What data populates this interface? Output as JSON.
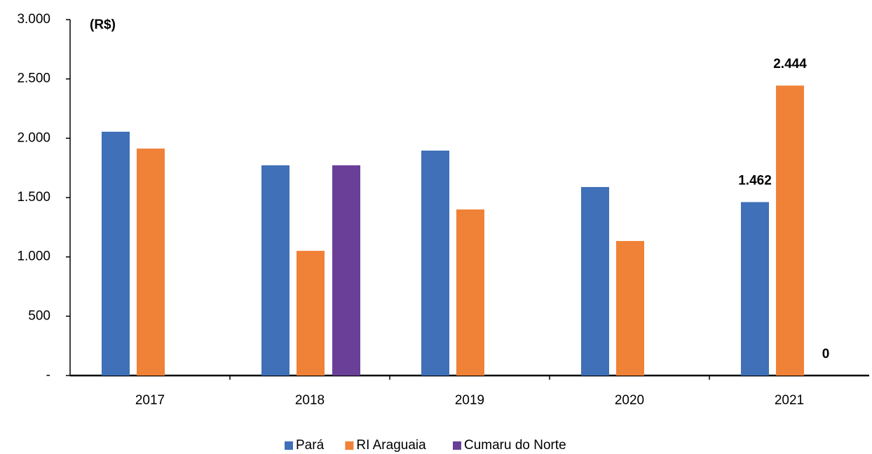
{
  "chart_data": {
    "type": "bar",
    "y_label": "(R$)",
    "categories": [
      "2017",
      "2018",
      "2019",
      "2020",
      "2021"
    ],
    "series": [
      {
        "name": "Pará",
        "color": "#3f70b8",
        "values": [
          2055,
          1772,
          1896,
          1589,
          1462
        ],
        "value_labels": [
          null,
          null,
          null,
          null,
          "1.462"
        ]
      },
      {
        "name": "RI Araguaia",
        "color": "#f08237",
        "values": [
          1913,
          1051,
          1400,
          1134,
          2444
        ],
        "value_labels": [
          null,
          null,
          null,
          null,
          "2.444"
        ]
      },
      {
        "name": "Cumaru do Norte",
        "color": "#6a3f98",
        "values": [
          null,
          1772,
          null,
          null,
          0
        ],
        "value_labels": [
          null,
          null,
          null,
          null,
          "0"
        ]
      }
    ],
    "ylim": [
      0,
      3000
    ],
    "yticks": [
      {
        "value": 0,
        "label": "-"
      },
      500,
      {
        "value": 1000,
        "label": "1.000"
      },
      {
        "value": 1500,
        "label": "1.500"
      },
      {
        "value": 2000,
        "label": "2.000"
      },
      {
        "value": 2500,
        "label": "2.500"
      },
      {
        "value": 3000,
        "label": "3.000"
      }
    ],
    "grid": false,
    "legend": "bottom"
  }
}
